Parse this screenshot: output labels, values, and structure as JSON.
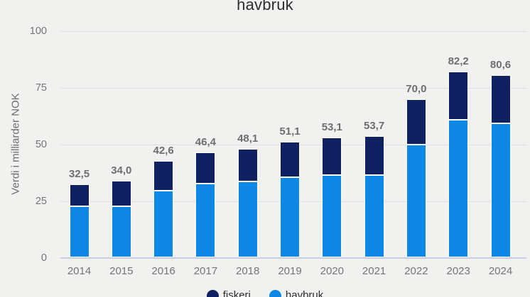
{
  "title": "havbruk",
  "y_axis": {
    "label": "Verdi i milliarder NOK",
    "ticks": [
      0,
      25,
      50,
      75,
      100
    ]
  },
  "legend": {
    "items": [
      {
        "label": "fiskeri",
        "color": "#0f2161"
      },
      {
        "label": "havbruk",
        "color": "#0e87e5"
      }
    ]
  },
  "chart_data": {
    "type": "bar",
    "stacked": true,
    "title": "havbruk",
    "ylabel": "Verdi i milliarder NOK",
    "ylim": [
      0,
      100
    ],
    "grid": true,
    "legend_position": "bottom",
    "categories": [
      "2014",
      "2015",
      "2016",
      "2017",
      "2018",
      "2019",
      "2020",
      "2021",
      "2022",
      "2023",
      "2024"
    ],
    "series": [
      {
        "name": "havbruk",
        "color": "#0e87e5",
        "values": [
          22.6,
          22.7,
          29.6,
          32.8,
          33.6,
          35.5,
          36.5,
          36.6,
          50.0,
          60.8,
          59.2
        ]
      },
      {
        "name": "fiskeri",
        "color": "#0f2161",
        "values": [
          9.9,
          11.3,
          13.0,
          13.6,
          14.5,
          15.6,
          16.6,
          17.1,
          20.0,
          21.4,
          21.4
        ]
      }
    ],
    "totals": [
      32.5,
      34.0,
      42.6,
      46.4,
      48.1,
      51.1,
      53.1,
      53.7,
      70.0,
      82.2,
      80.6
    ],
    "totals_display": [
      "32,5",
      "34,0",
      "42,6",
      "46,4",
      "48,1",
      "51,1",
      "53,1",
      "53,7",
      "70,0",
      "82,2",
      "80,6"
    ]
  },
  "colors": {
    "background": "#f1f2ef",
    "gridline": "#dedede",
    "baseline": "#c6cde7",
    "axis_text": "#757575",
    "value_label_text": "#6e6e6e",
    "title_text": "#2e2e2e"
  }
}
